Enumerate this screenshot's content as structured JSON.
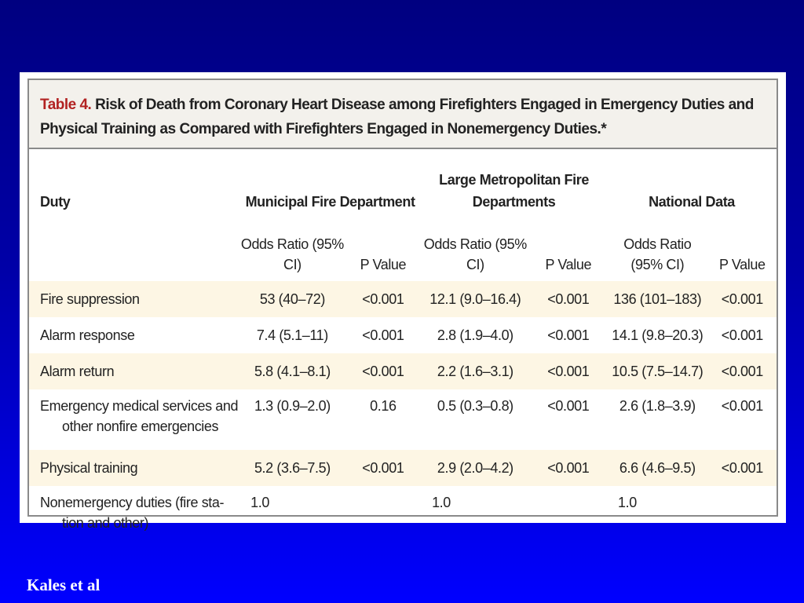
{
  "table": {
    "number": "Table 4.",
    "title": "Risk of Death from Coronary Heart Disease among Firefighters Engaged in Emergency Duties and Physical Training as Compared with Firefighters Engaged in Nonemergency Duties.*",
    "columns": {
      "duty": "Duty",
      "group1": "Municipal Fire Department",
      "group2": "Large Metropolitan Fire Departments",
      "group3": "National Data",
      "odds_ratio": "Odds Ratio (95% CI)",
      "p_value": "P Value"
    },
    "rows": [
      {
        "duty": "Fire suppression",
        "cont": "",
        "or1": "53 (40–72)",
        "p1": "<0.001",
        "or2": "12.1 (9.0–16.4)",
        "p2": "<0.001",
        "or3": "136 (101–183)",
        "p3": "<0.001"
      },
      {
        "duty": "Alarm response",
        "cont": "",
        "or1": "7.4 (5.1–11)",
        "p1": "<0.001",
        "or2": "2.8 (1.9–4.0)",
        "p2": "<0.001",
        "or3": "14.1 (9.8–20.3)",
        "p3": "<0.001"
      },
      {
        "duty": "Alarm return",
        "cont": "",
        "or1": "5.8 (4.1–8.1)",
        "p1": "<0.001",
        "or2": "2.2 (1.6–3.1)",
        "p2": "<0.001",
        "or3": "10.5 (7.5–14.7)",
        "p3": "<0.001"
      },
      {
        "duty": "Emergency medical services and",
        "cont": "other nonfire emergencies",
        "or1": "1.3 (0.9–2.0)",
        "p1": "0.16",
        "or2": "0.5 (0.3–0.8)",
        "p2": "<0.001",
        "or3": "2.6 (1.8–3.9)",
        "p3": "<0.001"
      },
      {
        "duty": "Physical training",
        "cont": "",
        "or1": "5.2 (3.6–7.5)",
        "p1": "<0.001",
        "or2": "2.9 (2.0–4.2)",
        "p2": "<0.001",
        "or3": "6.6 (4.6–9.5)",
        "p3": "<0.001"
      },
      {
        "duty": "Nonemergency duties (fire sta-",
        "cont": "tion and other)",
        "or1": "1.0",
        "p1": "",
        "or2": "1.0",
        "p2": "",
        "or3": "1.0",
        "p3": ""
      }
    ]
  },
  "source": "Kales et al"
}
